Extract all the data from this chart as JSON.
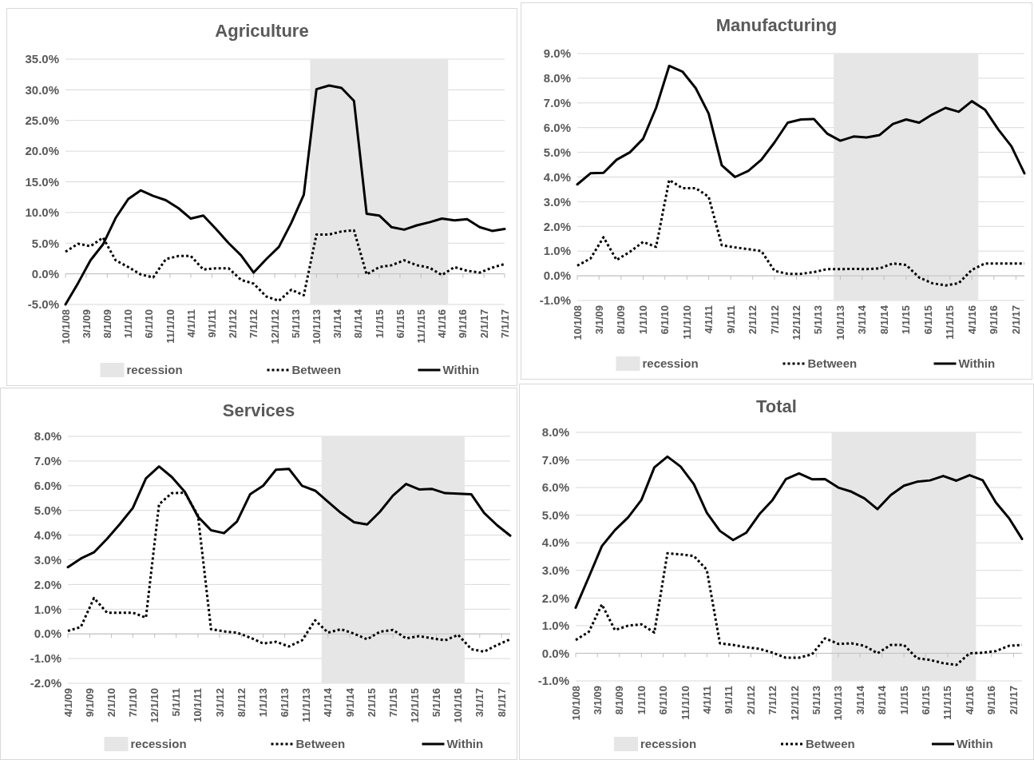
{
  "chart_data": [
    {
      "type": "line",
      "title": "Agriculture",
      "x": [
        "2008-10-01",
        "2009-01-01",
        "2009-04-01",
        "2009-07-01",
        "2009-10-01",
        "2010-01-01",
        "2010-04-01",
        "2010-07-01",
        "2010-10-01",
        "2011-01-01",
        "2011-04-01",
        "2011-07-01",
        "2011-10-01",
        "2012-01-01",
        "2012-04-01",
        "2012-07-01",
        "2012-10-01",
        "2013-01-01",
        "2013-04-01",
        "2013-07-01",
        "2013-10-01",
        "2014-01-01",
        "2014-04-01",
        "2014-07-01",
        "2014-10-01",
        "2015-01-01",
        "2015-04-01",
        "2015-07-01",
        "2015-10-01",
        "2016-01-01",
        "2016-04-01",
        "2016-07-01",
        "2016-10-01",
        "2017-01-01",
        "2017-04-01",
        "2017-07-01"
      ],
      "xlim": [
        "2008-10-01",
        "2017-07-01"
      ],
      "xticks": [
        {
          "value": "2008-10-01",
          "label": "10/1/08"
        },
        {
          "value": "2009-03-01",
          "label": "3/1/09"
        },
        {
          "value": "2009-08-01",
          "label": "8/1/09"
        },
        {
          "value": "2010-01-01",
          "label": "1/1/10"
        },
        {
          "value": "2010-06-01",
          "label": "6/1/10"
        },
        {
          "value": "2010-11-01",
          "label": "11/1/10"
        },
        {
          "value": "2011-04-01",
          "label": "4/1/11"
        },
        {
          "value": "2011-09-01",
          "label": "9/1/11"
        },
        {
          "value": "2012-02-01",
          "label": "2/1/12"
        },
        {
          "value": "2012-07-01",
          "label": "7/1/12"
        },
        {
          "value": "2012-12-01",
          "label": "12/1/12"
        },
        {
          "value": "2013-05-01",
          "label": "5/1/13"
        },
        {
          "value": "2013-10-01",
          "label": "10/1/13"
        },
        {
          "value": "2014-03-01",
          "label": "3/1/14"
        },
        {
          "value": "2014-08-01",
          "label": "8/1/14"
        },
        {
          "value": "2015-01-01",
          "label": "1/1/15"
        },
        {
          "value": "2015-06-01",
          "label": "6/1/15"
        },
        {
          "value": "2015-11-01",
          "label": "11/1/15"
        },
        {
          "value": "2016-04-01",
          "label": "4/1/16"
        },
        {
          "value": "2016-09-01",
          "label": "9/1/16"
        },
        {
          "value": "2017-02-01",
          "label": "2/1/17"
        },
        {
          "value": "2017-07-01",
          "label": "7/1/17"
        }
      ],
      "ylim": [
        -5,
        35
      ],
      "yticks": [
        {
          "value": -5,
          "label": "-5.0%"
        },
        {
          "value": 0,
          "label": "0.0%"
        },
        {
          "value": 5,
          "label": "5.0%"
        },
        {
          "value": 10,
          "label": "10.0%"
        },
        {
          "value": 15,
          "label": "15.0%"
        },
        {
          "value": 20,
          "label": "20.0%"
        },
        {
          "value": 25,
          "label": "25.0%"
        },
        {
          "value": 30,
          "label": "30.0%"
        },
        {
          "value": 35,
          "label": "35.0%"
        }
      ],
      "grid": "y",
      "legend": "bottom",
      "bands": [
        {
          "axis": "x",
          "from": "2013-08-16",
          "to": "2016-05-16",
          "label": "recession",
          "color": "#e7e6e6"
        }
      ],
      "series": [
        {
          "name": "Between",
          "color": "#000000",
          "line_style": "dotted",
          "values": [
            3.6,
            4.9,
            4.5,
            5.9,
            2.2,
            1.1,
            -0.1,
            -0.6,
            2.4,
            2.9,
            2.9,
            0.7,
            0.9,
            0.9,
            -1.0,
            -1.6,
            -3.7,
            -4.4,
            -2.6,
            -3.5,
            6.4,
            6.4,
            6.9,
            7.1,
            -0.1,
            1.1,
            1.4,
            2.2,
            1.4,
            1.0,
            -0.2,
            1.1,
            0.5,
            0.2,
            1.0,
            1.6
          ]
        },
        {
          "name": "Within",
          "color": "#000000",
          "line_style": "solid",
          "values": [
            -5.0,
            -1.5,
            2.2,
            4.8,
            9.1,
            12.2,
            13.6,
            12.7,
            12.0,
            10.7,
            9.0,
            9.5,
            7.3,
            5.0,
            3.0,
            0.2,
            2.4,
            4.4,
            8.3,
            12.9,
            30.1,
            30.7,
            30.3,
            28.2,
            9.8,
            9.5,
            7.6,
            7.2,
            7.9,
            8.4,
            9.0,
            8.7,
            8.9,
            7.6,
            7.0,
            7.3
          ]
        }
      ]
    },
    {
      "type": "line",
      "title": "Manufacturing",
      "x": [
        "2008-10-01",
        "2009-01-01",
        "2009-04-01",
        "2009-07-01",
        "2009-10-01",
        "2010-01-01",
        "2010-04-01",
        "2010-07-01",
        "2010-10-01",
        "2011-01-01",
        "2011-04-01",
        "2011-07-01",
        "2011-10-01",
        "2012-01-01",
        "2012-04-01",
        "2012-07-01",
        "2012-10-01",
        "2013-01-01",
        "2013-04-01",
        "2013-07-01",
        "2013-10-01",
        "2014-01-01",
        "2014-04-01",
        "2014-07-01",
        "2014-10-01",
        "2015-01-01",
        "2015-04-01",
        "2015-07-01",
        "2015-10-01",
        "2016-01-01",
        "2016-04-01",
        "2016-07-01",
        "2016-10-01",
        "2017-01-01",
        "2017-04-01"
      ],
      "xlim": [
        "2008-10-01",
        "2017-04-01"
      ],
      "xticks": [
        {
          "value": "2008-10-01",
          "label": "10/1/08"
        },
        {
          "value": "2009-03-01",
          "label": "3/1/09"
        },
        {
          "value": "2009-08-01",
          "label": "8/1/09"
        },
        {
          "value": "2010-01-01",
          "label": "1/1/10"
        },
        {
          "value": "2010-06-01",
          "label": "6/1/10"
        },
        {
          "value": "2010-11-01",
          "label": "11/1/10"
        },
        {
          "value": "2011-04-01",
          "label": "4/1/11"
        },
        {
          "value": "2011-09-01",
          "label": "9/1/11"
        },
        {
          "value": "2012-02-01",
          "label": "2/1/12"
        },
        {
          "value": "2012-07-01",
          "label": "7/1/12"
        },
        {
          "value": "2012-12-01",
          "label": "12/1/12"
        },
        {
          "value": "2013-05-01",
          "label": "5/1/13"
        },
        {
          "value": "2013-10-01",
          "label": "10/1/13"
        },
        {
          "value": "2014-03-01",
          "label": "3/1/14"
        },
        {
          "value": "2014-08-01",
          "label": "8/1/14"
        },
        {
          "value": "2015-01-01",
          "label": "1/1/15"
        },
        {
          "value": "2015-06-01",
          "label": "6/1/15"
        },
        {
          "value": "2015-11-01",
          "label": "11/1/15"
        },
        {
          "value": "2016-04-01",
          "label": "4/1/16"
        },
        {
          "value": "2016-09-01",
          "label": "9/1/16"
        },
        {
          "value": "2017-02-01",
          "label": "2/1/17"
        }
      ],
      "ylim": [
        -1,
        9
      ],
      "yticks": [
        {
          "value": -1,
          "label": "-1.0%"
        },
        {
          "value": 0,
          "label": "0.0%"
        },
        {
          "value": 1,
          "label": "1.0%"
        },
        {
          "value": 2,
          "label": "2.0%"
        },
        {
          "value": 3,
          "label": "3.0%"
        },
        {
          "value": 4,
          "label": "4.0%"
        },
        {
          "value": 5,
          "label": "5.0%"
        },
        {
          "value": 6,
          "label": "6.0%"
        },
        {
          "value": 7,
          "label": "7.0%"
        },
        {
          "value": 8,
          "label": "8.0%"
        },
        {
          "value": 9,
          "label": "9.0%"
        }
      ],
      "grid": "y",
      "legend": "bottom",
      "bands": [
        {
          "axis": "x",
          "from": "2013-08-16",
          "to": "2016-05-16",
          "label": "recession",
          "color": "#e7e6e6"
        }
      ],
      "series": [
        {
          "name": "Between",
          "color": "#000000",
          "line_style": "dotted",
          "values": [
            0.41,
            0.7,
            1.56,
            0.64,
            0.97,
            1.37,
            1.17,
            3.88,
            3.55,
            3.55,
            3.2,
            1.24,
            1.15,
            1.08,
            1.0,
            0.2,
            0.08,
            0.08,
            0.15,
            0.27,
            0.27,
            0.28,
            0.27,
            0.3,
            0.5,
            0.44,
            -0.07,
            -0.3,
            -0.39,
            -0.3,
            0.24,
            0.5,
            0.5,
            0.5,
            0.5
          ]
        },
        {
          "name": "Within",
          "color": "#000000",
          "line_style": "solid",
          "values": [
            3.7,
            4.15,
            4.17,
            4.7,
            5.0,
            5.55,
            6.8,
            8.5,
            8.27,
            7.6,
            6.57,
            4.47,
            4.0,
            4.25,
            4.7,
            5.4,
            6.2,
            6.33,
            6.35,
            5.76,
            5.47,
            5.64,
            5.6,
            5.7,
            6.15,
            6.33,
            6.2,
            6.53,
            6.8,
            6.64,
            7.07,
            6.73,
            5.93,
            5.24,
            4.15
          ]
        }
      ]
    },
    {
      "type": "line",
      "title": "Services",
      "x": [
        "2009-04-01",
        "2009-07-01",
        "2009-10-01",
        "2010-01-01",
        "2010-04-01",
        "2010-07-01",
        "2010-10-01",
        "2011-01-01",
        "2011-04-01",
        "2011-07-01",
        "2011-10-01",
        "2012-01-01",
        "2012-04-01",
        "2012-07-01",
        "2012-10-01",
        "2013-01-01",
        "2013-04-01",
        "2013-07-01",
        "2013-10-01",
        "2014-01-01",
        "2014-04-01",
        "2014-07-01",
        "2014-10-01",
        "2015-01-01",
        "2015-04-01",
        "2015-07-01",
        "2015-10-01",
        "2016-01-01",
        "2016-04-01",
        "2016-07-01",
        "2016-10-01",
        "2017-01-01",
        "2017-04-01",
        "2017-07-01",
        "2017-10-01"
      ],
      "xlim": [
        "2009-04-01",
        "2017-10-01"
      ],
      "xticks": [
        {
          "value": "2009-04-01",
          "label": "4/1/09"
        },
        {
          "value": "2009-09-01",
          "label": "9/1/09"
        },
        {
          "value": "2010-02-01",
          "label": "2/1/10"
        },
        {
          "value": "2010-07-01",
          "label": "7/1/10"
        },
        {
          "value": "2010-12-01",
          "label": "12/1/10"
        },
        {
          "value": "2011-05-01",
          "label": "5/1/11"
        },
        {
          "value": "2011-10-01",
          "label": "10/1/11"
        },
        {
          "value": "2012-03-01",
          "label": "3/1/12"
        },
        {
          "value": "2012-08-01",
          "label": "8/1/12"
        },
        {
          "value": "2013-01-01",
          "label": "1/1/13"
        },
        {
          "value": "2013-06-01",
          "label": "6/1/13"
        },
        {
          "value": "2013-11-01",
          "label": "11/1/13"
        },
        {
          "value": "2014-04-01",
          "label": "4/1/14"
        },
        {
          "value": "2014-09-01",
          "label": "9/1/14"
        },
        {
          "value": "2015-02-01",
          "label": "2/1/15"
        },
        {
          "value": "2015-07-01",
          "label": "7/1/15"
        },
        {
          "value": "2015-12-01",
          "label": "12/1/15"
        },
        {
          "value": "2016-05-01",
          "label": "5/1/16"
        },
        {
          "value": "2016-10-01",
          "label": "10/1/16"
        },
        {
          "value": "2017-03-01",
          "label": "3/1/17"
        },
        {
          "value": "2017-08-01",
          "label": "8/1/17"
        }
      ],
      "ylim": [
        -2,
        8
      ],
      "yticks": [
        {
          "value": -2,
          "label": "-2.0%"
        },
        {
          "value": -1,
          "label": "-1.0%"
        },
        {
          "value": 0,
          "label": "0.0%"
        },
        {
          "value": 1,
          "label": "1.0%"
        },
        {
          "value": 2,
          "label": "2.0%"
        },
        {
          "value": 3,
          "label": "3.0%"
        },
        {
          "value": 4,
          "label": "4.0%"
        },
        {
          "value": 5,
          "label": "5.0%"
        },
        {
          "value": 6,
          "label": "6.0%"
        },
        {
          "value": 7,
          "label": "7.0%"
        },
        {
          "value": 8,
          "label": "8.0%"
        }
      ],
      "grid": "y",
      "legend": "bottom",
      "bands": [
        {
          "axis": "x",
          "from": "2014-02-15",
          "to": "2016-11-15",
          "label": "recession",
          "color": "#e7e6e6"
        }
      ],
      "series": [
        {
          "name": "Between",
          "color": "#000000",
          "line_style": "dotted",
          "values": [
            0.12,
            0.28,
            1.45,
            0.86,
            0.86,
            0.86,
            0.66,
            5.25,
            5.7,
            5.72,
            4.8,
            0.19,
            0.1,
            0.05,
            -0.15,
            -0.39,
            -0.32,
            -0.51,
            -0.26,
            0.55,
            0.05,
            0.19,
            0.01,
            -0.22,
            0.09,
            0.16,
            -0.18,
            -0.09,
            -0.18,
            -0.26,
            -0.04,
            -0.62,
            -0.72,
            -0.45,
            -0.22
          ]
        },
        {
          "name": "Within",
          "color": "#000000",
          "line_style": "solid",
          "values": [
            2.7,
            3.05,
            3.3,
            3.85,
            4.45,
            5.1,
            6.3,
            6.78,
            6.35,
            5.75,
            4.75,
            4.2,
            4.08,
            4.55,
            5.65,
            6.0,
            6.65,
            6.68,
            6.0,
            5.8,
            5.35,
            4.9,
            4.52,
            4.43,
            4.95,
            5.6,
            6.07,
            5.85,
            5.87,
            5.7,
            5.68,
            5.65,
            4.9,
            4.4,
            3.98
          ]
        }
      ]
    },
    {
      "type": "line",
      "title": "Total",
      "x": [
        "2008-10-01",
        "2009-01-01",
        "2009-04-01",
        "2009-07-01",
        "2009-10-01",
        "2010-01-01",
        "2010-04-01",
        "2010-07-01",
        "2010-10-01",
        "2011-01-01",
        "2011-04-01",
        "2011-07-01",
        "2011-10-01",
        "2012-01-01",
        "2012-04-01",
        "2012-07-01",
        "2012-10-01",
        "2013-01-01",
        "2013-04-01",
        "2013-07-01",
        "2013-10-01",
        "2014-01-01",
        "2014-04-01",
        "2014-07-01",
        "2014-10-01",
        "2015-01-01",
        "2015-04-01",
        "2015-07-01",
        "2015-10-01",
        "2016-01-01",
        "2016-04-01",
        "2016-07-01",
        "2016-10-01",
        "2017-01-01",
        "2017-04-01"
      ],
      "xlim": [
        "2008-10-01",
        "2017-04-01"
      ],
      "xticks": [
        {
          "value": "2008-10-01",
          "label": "10/1/08"
        },
        {
          "value": "2009-03-01",
          "label": "3/1/09"
        },
        {
          "value": "2009-08-01",
          "label": "8/1/09"
        },
        {
          "value": "2010-01-01",
          "label": "1/1/10"
        },
        {
          "value": "2010-06-01",
          "label": "6/1/10"
        },
        {
          "value": "2010-11-01",
          "label": "11/1/10"
        },
        {
          "value": "2011-04-01",
          "label": "4/1/11"
        },
        {
          "value": "2011-09-01",
          "label": "9/1/11"
        },
        {
          "value": "2012-02-01",
          "label": "2/1/12"
        },
        {
          "value": "2012-07-01",
          "label": "7/1/12"
        },
        {
          "value": "2012-12-01",
          "label": "12/1/12"
        },
        {
          "value": "2013-05-01",
          "label": "5/1/13"
        },
        {
          "value": "2013-10-01",
          "label": "10/1/13"
        },
        {
          "value": "2014-03-01",
          "label": "3/1/14"
        },
        {
          "value": "2014-08-01",
          "label": "8/1/14"
        },
        {
          "value": "2015-01-01",
          "label": "1/1/15"
        },
        {
          "value": "2015-06-01",
          "label": "6/1/15"
        },
        {
          "value": "2015-11-01",
          "label": "11/1/15"
        },
        {
          "value": "2016-04-01",
          "label": "4/1/16"
        },
        {
          "value": "2016-09-01",
          "label": "9/1/16"
        },
        {
          "value": "2017-02-01",
          "label": "2/1/17"
        }
      ],
      "ylim": [
        -1,
        8
      ],
      "yticks": [
        {
          "value": -1,
          "label": "-1.0%"
        },
        {
          "value": 0,
          "label": "0.0%"
        },
        {
          "value": 1,
          "label": "1.0%"
        },
        {
          "value": 2,
          "label": "2.0%"
        },
        {
          "value": 3,
          "label": "3.0%"
        },
        {
          "value": 4,
          "label": "4.0%"
        },
        {
          "value": 5,
          "label": "5.0%"
        },
        {
          "value": 6,
          "label": "6.0%"
        },
        {
          "value": 7,
          "label": "7.0%"
        },
        {
          "value": 8,
          "label": "8.0%"
        }
      ],
      "grid": "y",
      "legend": "bottom",
      "bands": [
        {
          "axis": "x",
          "from": "2013-08-16",
          "to": "2016-05-16",
          "label": "recession",
          "color": "#e7e6e6"
        }
      ],
      "series": [
        {
          "name": "Between",
          "color": "#000000",
          "line_style": "dotted",
          "values": [
            0.48,
            0.78,
            1.77,
            0.84,
            1.0,
            1.05,
            0.75,
            3.62,
            3.58,
            3.52,
            3.02,
            0.36,
            0.3,
            0.22,
            0.16,
            0.02,
            -0.16,
            -0.16,
            -0.04,
            0.54,
            0.34,
            0.36,
            0.27,
            0.0,
            0.3,
            0.3,
            -0.18,
            -0.24,
            -0.36,
            -0.42,
            0.0,
            0.02,
            0.08,
            0.27,
            0.3
          ]
        },
        {
          "name": "Within",
          "color": "#000000",
          "line_style": "solid",
          "values": [
            1.65,
            2.77,
            3.88,
            4.46,
            4.92,
            5.55,
            6.73,
            7.12,
            6.76,
            6.12,
            5.09,
            4.43,
            4.1,
            4.37,
            5.04,
            5.55,
            6.3,
            6.51,
            6.3,
            6.31,
            6.0,
            5.85,
            5.61,
            5.22,
            5.73,
            6.07,
            6.21,
            6.26,
            6.42,
            6.25,
            6.45,
            6.27,
            5.46,
            4.89,
            4.14
          ]
        }
      ]
    }
  ]
}
